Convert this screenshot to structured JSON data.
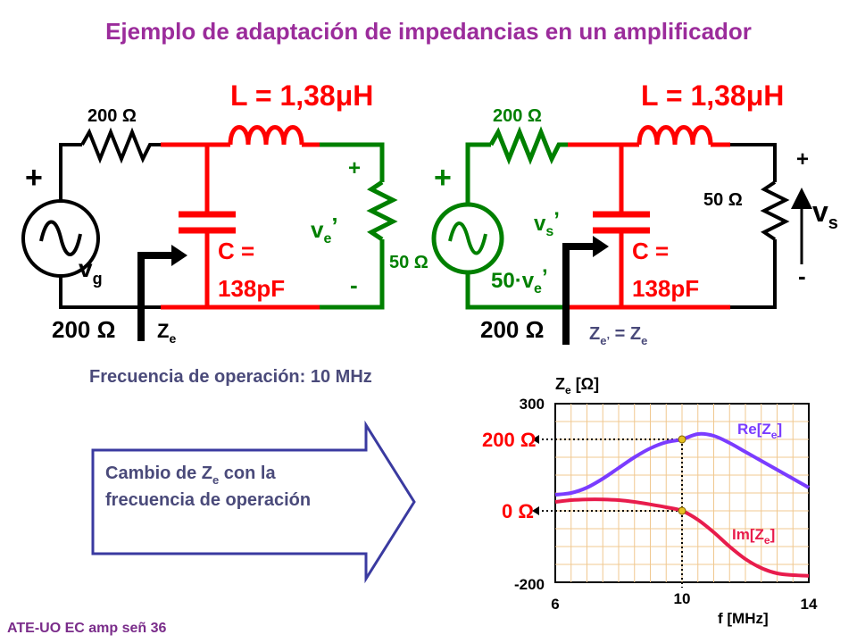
{
  "title": "Ejemplo de adaptación de impedancias en un amplificador",
  "colors": {
    "title": "#9b2c9b",
    "red": "#ff0000",
    "green": "#008000",
    "black": "#000000",
    "grid": "#f0c890",
    "re_curve": "#7a3cff",
    "im_curve": "#e81c4c",
    "dot": "#e6c020",
    "arrow_border": "#3a3aa0",
    "dim_text": "#4a4a7a"
  },
  "circuit1": {
    "res_label": "200 Ω",
    "inductor_label": "L = 1,38μH",
    "cap_label_1": "C =",
    "cap_label_2": "138pF",
    "source_plus": "+",
    "source_name": "v",
    "source_sub": "g",
    "load_label": "50 Ω",
    "load_plus": "+",
    "load_minus": "-",
    "load_v": "v",
    "load_v_sub": "e",
    "load_v_prime": "’",
    "left_res_label": "200 Ω",
    "ze_main": "Z",
    "ze_sub": "e"
  },
  "circuit2": {
    "res_label": "200 Ω",
    "inductor_label": "L = 1,38μH",
    "cap_label_1": "C =",
    "cap_label_2": "138pF",
    "source_plus": "+",
    "vs_prime_main": "v",
    "vs_prime_sub": "s",
    "vs_prime_mark": "’",
    "source_value_main": "50·v",
    "source_value_sub": "e",
    "source_value_mark": "’",
    "load_label": "50 Ω",
    "load_plus": "+",
    "load_minus": "-",
    "out_v": "v",
    "out_v_sub": "s",
    "left_res_label": "200 Ω",
    "ze_main": "Z",
    "ze_sub_e": "e’",
    "ze_eq": " = Z",
    "ze_sub2": "e"
  },
  "freq_text": "Frecuencia de operación: 10 MHz",
  "arrow_text_line1_a": "Cambio de Z",
  "arrow_text_line1_sub": "e",
  "arrow_text_line1_b": " con la",
  "arrow_text_line2": "frecuencia de operación",
  "footer": "ATE-UO EC amp señ 36",
  "chart_data": {
    "type": "line",
    "ylabel_main": "Z",
    "ylabel_sub": "e",
    "ylabel_unit": " [Ω]",
    "xlabel": "f [MHz]",
    "xlim": [
      6,
      14
    ],
    "ylim": [
      -200,
      300
    ],
    "x_ticks": [
      "6",
      "10",
      "14"
    ],
    "y_ticks": [
      "300",
      "-200"
    ],
    "marker_labels": [
      "200 Ω",
      "0 Ω"
    ],
    "marker_x": 10,
    "marker_values": [
      200,
      0
    ],
    "grid": true,
    "series": [
      {
        "name_main": "Re[Z",
        "name_sub": "e",
        "name_end": "]",
        "x": [
          6,
          6.5,
          7,
          7.5,
          8,
          8.5,
          9,
          9.5,
          10,
          10.5,
          11,
          11.5,
          12,
          12.5,
          13,
          13.5,
          14
        ],
        "y": [
          45,
          50,
          65,
          90,
          120,
          150,
          175,
          192,
          200,
          215,
          210,
          190,
          165,
          140,
          115,
          90,
          65
        ]
      },
      {
        "name_main": "Im[Z",
        "name_sub": "e",
        "name_end": "]",
        "x": [
          6,
          6.5,
          7,
          7.5,
          8,
          8.5,
          9,
          9.5,
          10,
          10.5,
          11,
          11.5,
          12,
          12.5,
          13,
          13.5,
          14
        ],
        "y": [
          25,
          30,
          32,
          32,
          30,
          25,
          18,
          10,
          0,
          -25,
          -60,
          -100,
          -135,
          -160,
          -175,
          -180,
          -182
        ]
      }
    ]
  }
}
